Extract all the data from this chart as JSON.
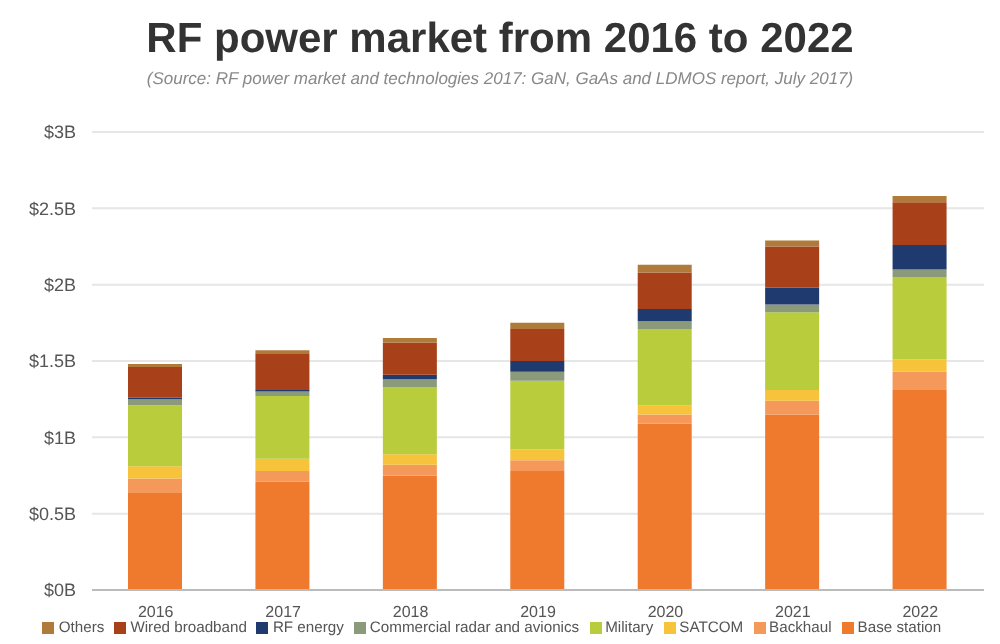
{
  "chart_data": {
    "type": "bar",
    "title": "RF power market from 2016 to 2022",
    "subtitle": "(Source: RF power market and technologies 2017: GaN, GaAs and LDMOS report, July 2017)",
    "categories": [
      "2016",
      "2017",
      "2018",
      "2019",
      "2020",
      "2021",
      "2022"
    ],
    "stacked": true,
    "series": [
      {
        "name": "Base station",
        "color": "#ef7a2e",
        "values": [
          0.64,
          0.71,
          0.75,
          0.78,
          1.09,
          1.15,
          1.31
        ]
      },
      {
        "name": "Backhaul",
        "color": "#f4995a",
        "values": [
          0.09,
          0.07,
          0.07,
          0.07,
          0.06,
          0.09,
          0.12
        ]
      },
      {
        "name": "SATCOM",
        "color": "#f7c33a",
        "values": [
          0.08,
          0.08,
          0.07,
          0.07,
          0.06,
          0.07,
          0.08
        ]
      },
      {
        "name": "Military",
        "color": "#b8cc3c",
        "values": [
          0.4,
          0.41,
          0.44,
          0.45,
          0.5,
          0.51,
          0.54
        ]
      },
      {
        "name": "Commercial radar and avionics",
        "color": "#8a9a7a",
        "values": [
          0.04,
          0.03,
          0.05,
          0.06,
          0.05,
          0.05,
          0.05
        ]
      },
      {
        "name": "RF energy",
        "color": "#1f3a6e",
        "values": [
          0.01,
          0.01,
          0.03,
          0.07,
          0.08,
          0.11,
          0.16
        ]
      },
      {
        "name": "Wired broadband",
        "color": "#a8401a",
        "values": [
          0.2,
          0.24,
          0.21,
          0.21,
          0.24,
          0.27,
          0.28
        ]
      },
      {
        "name": "Others",
        "color": "#b07a3a",
        "values": [
          0.02,
          0.02,
          0.03,
          0.04,
          0.05,
          0.04,
          0.04
        ]
      }
    ],
    "ylim": [
      0,
      3
    ],
    "yticks": [
      {
        "value": 0,
        "label": "$0B"
      },
      {
        "value": 0.5,
        "label": "$0.5B"
      },
      {
        "value": 1,
        "label": "$1B"
      },
      {
        "value": 1.5,
        "label": "$1.5B"
      },
      {
        "value": 2,
        "label": "$2B"
      },
      {
        "value": 2.5,
        "label": "$2.5B"
      },
      {
        "value": 3,
        "label": "$3B"
      }
    ],
    "grid": "y",
    "legend": "bottom"
  }
}
